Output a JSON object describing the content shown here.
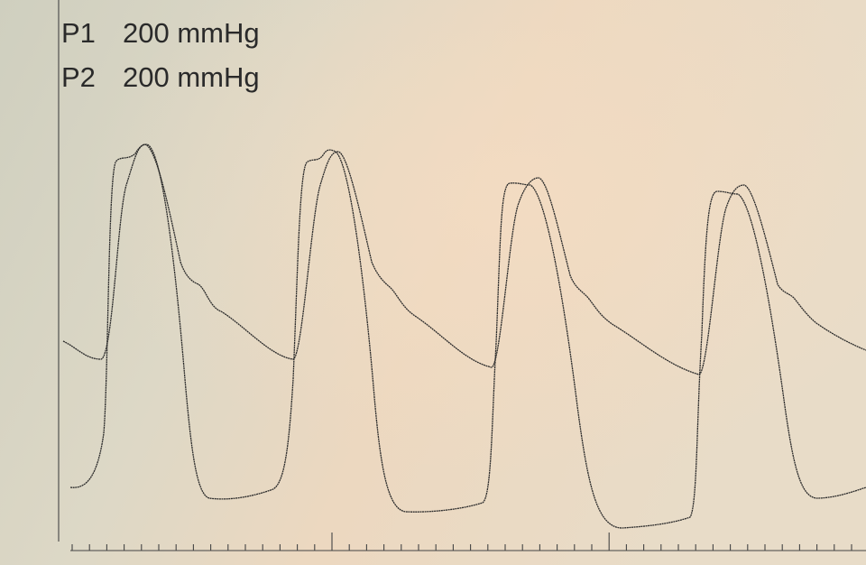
{
  "labels": [
    {
      "channel": "P1",
      "scale": "200 mmHg"
    },
    {
      "channel": "P2",
      "scale": "200 mmHg"
    }
  ]
}
